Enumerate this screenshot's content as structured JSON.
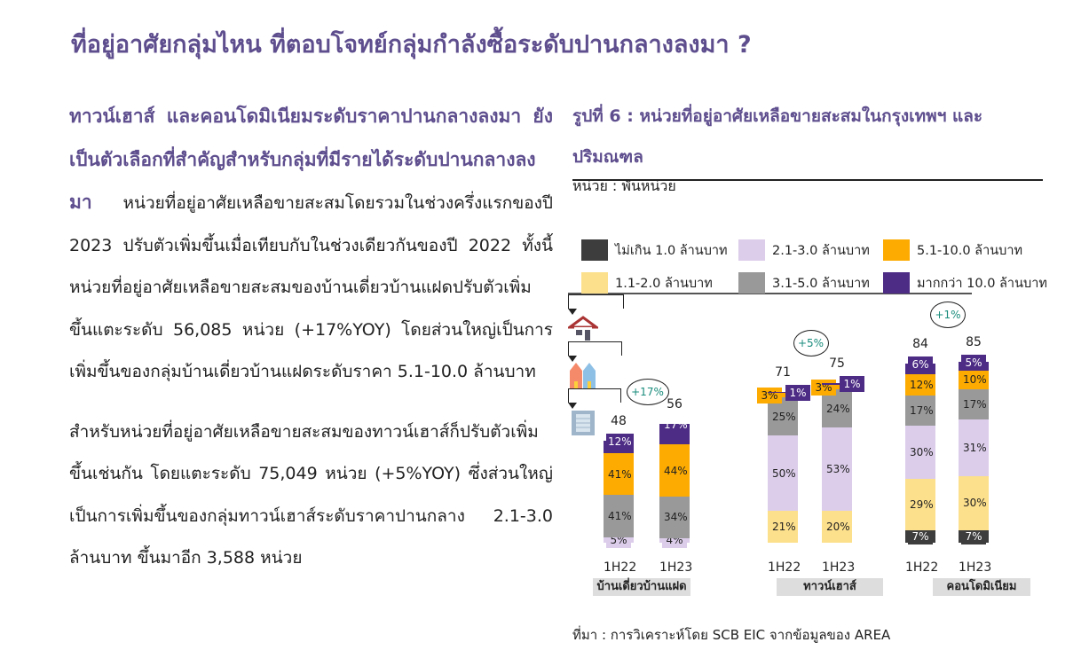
{
  "title": "ที่อยู่อาศัยกลุ่มไหน ที่ตอบโจทย์กลุ่มกำลังซื้อระดับปานกลางลงมา ?",
  "left": {
    "highlight": "ทาวน์เฮาส์ และคอนโดมิเนียมระดับราคาปานกลางลงมา ยังเป็นตัวเลือกที่สำคัญสำหรับกลุ่มที่มีรายได้ระดับปานกลางลงมา",
    "para1": " หน่วยที่อยู่อาศัยเหลือขายสะสมโดยรวมในช่วงครึ่งแรกของปี 2023 ปรับตัวเพิ่มขึ้นเมื่อเทียบกับในช่วงเดียวกันของปี 2022 ทั้งนี้หน่วยที่อยู่อาศัยเหลือขายสะสมของบ้านเดี่ยวบ้านแฝดปรับตัวเพิ่มขึ้นแตะระดับ 56,085 หน่วย (+17%YOY) โดยส่วนใหญ่เป็นการเพิ่มขึ้นของกลุ่มบ้านเดี่ยวบ้านแฝดระดับราคา 5.1-10.0 ล้านบาท",
    "para2": "สำหรับหน่วยที่อยู่อาศัยเหลือขายสะสมของทาวน์เฮาส์ก็ปรับตัวเพิ่มขึ้นเช่นกัน โดยแตะระดับ 75,049 หน่วย (+5%YOY) ซึ่งส่วนใหญ่เป็นการเพิ่มขึ้นของกลุ่มทาวน์เฮาส์ระดับราคาปานกลาง 2.1-3.0 ล้านบาท ขึ้นมาอีก 3,588 หน่วย"
  },
  "chart_data": {
    "type": "bar",
    "title": "รูปที่ 6 : หน่วยที่อยู่อาศัยเหลือขายสะสมในกรุงเทพฯ และปริมณฑล",
    "unit": "หน่วย : พันหน่วย",
    "legend": [
      "ไม่เกิน 1.0 ล้านบาท",
      "1.1-2.0 ล้านบาท",
      "2.1-3.0 ล้านบาท",
      "3.1-5.0 ล้านบาท",
      "5.1-10.0 ล้านบาท",
      "มากกว่า 10.0 ล้านบาท"
    ],
    "colors": [
      "#3d3d3d",
      "#fde08c",
      "#dccdeb",
      "#999999",
      "#fdab00",
      "#4d2c85"
    ],
    "groups": [
      {
        "name": "บ้านเดี่ยวบ้านแฝด",
        "growth": "+17%",
        "bars": [
          {
            "x": "1H22",
            "total": 48,
            "shares": [
              0,
              0,
              5,
              41,
              41,
              12
            ]
          },
          {
            "x": "1H23",
            "total": 56,
            "shares": [
              0,
              0,
              4,
              34,
              44,
              17
            ]
          }
        ]
      },
      {
        "name": "ทาวน์เฮาส์",
        "growth": "+5%",
        "bars": [
          {
            "x": "1H22",
            "total": 71,
            "shares": [
              0,
              21,
              50,
              25,
              3,
              1
            ]
          },
          {
            "x": "1H23",
            "total": 75,
            "shares": [
              0,
              20,
              53,
              24,
              3,
              1
            ]
          }
        ]
      },
      {
        "name": "คอนโดมิเนียม",
        "growth": "+1%",
        "bars": [
          {
            "x": "1H22",
            "total": 84,
            "shares": [
              7,
              29,
              30,
              17,
              12,
              6
            ]
          },
          {
            "x": "1H23",
            "total": 85,
            "shares": [
              7,
              30,
              31,
              17,
              10,
              5
            ]
          }
        ]
      }
    ],
    "source": "ที่มา : การวิเคราะห์โดย SCB EIC จากข้อมูลของ AREA"
  }
}
